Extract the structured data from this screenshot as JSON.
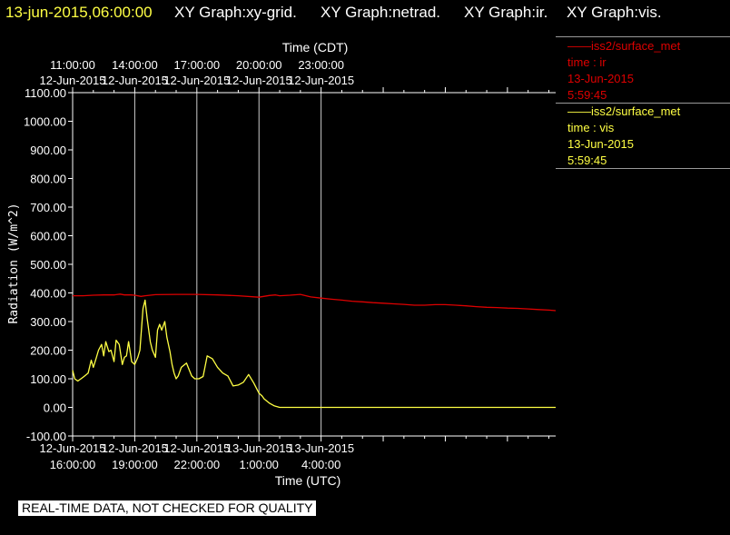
{
  "header": {
    "timestamp": "13-jun-2015,06:00:00",
    "graphs": [
      "XY Graph:xy-grid.",
      "XY Graph:netrad.",
      "XY Graph:ir.",
      "XY Graph:vis."
    ]
  },
  "legend": [
    {
      "title": "iss2/surface_met",
      "var": "time : ir",
      "date": "13-Jun-2015",
      "time": "5:59:45",
      "color": "#dd0000"
    },
    {
      "title": "iss2/surface_met",
      "var": "time : vis",
      "date": "13-Jun-2015",
      "time": "5:59:45",
      "color": "#ffff44"
    }
  ],
  "notice": "REAL-TIME DATA, NOT CHECKED FOR QUALITY",
  "chart_data": {
    "type": "line",
    "ylabel": "Radiation (W/m^2)",
    "xlabel_top": "Time (CDT)",
    "xlabel_bottom": "Time (UTC)",
    "ylim": [
      -100,
      1100
    ],
    "xlim_hours_utc": [
      16.0,
      39.33
    ],
    "grid": true,
    "yticks": [
      "1100.00",
      "1000.00",
      "900.00",
      "800.00",
      "700.00",
      "600.00",
      "500.00",
      "400.00",
      "300.00",
      "200.00",
      "100.00",
      "0.00",
      "-100.00"
    ],
    "top_ticks": [
      {
        "h": 16,
        "time": "11:00:00",
        "date": "12-Jun-2015"
      },
      {
        "h": 19,
        "time": "14:00:00",
        "date": "12-Jun-2015"
      },
      {
        "h": 22,
        "time": "17:00:00",
        "date": "12-Jun-2015"
      },
      {
        "h": 25,
        "time": "20:00:00",
        "date": "12-Jun-2015"
      },
      {
        "h": 28,
        "time": "23:00:00",
        "date": "12-Jun-2015"
      }
    ],
    "bottom_ticks": [
      {
        "h": 16,
        "date": "12-Jun-2015",
        "time": "16:00:00"
      },
      {
        "h": 19,
        "date": "12-Jun-2015",
        "time": "19:00:00"
      },
      {
        "h": 22,
        "date": "12-Jun-2015",
        "time": "22:00:00"
      },
      {
        "h": 25,
        "date": "13-Jun-2015",
        "time": "1:00:00"
      },
      {
        "h": 28,
        "date": "13-Jun-2015",
        "time": "4:00:00"
      }
    ],
    "series": [
      {
        "name": "iss2/surface_met time : ir",
        "color": "#dd0000",
        "x": [
          16.0,
          16.5,
          17.0,
          17.5,
          18.0,
          18.3,
          18.5,
          18.8,
          19.0,
          19.3,
          19.5,
          20.0,
          21.0,
          22.0,
          23.0,
          24.0,
          25.0,
          25.5,
          25.8,
          26.0,
          26.5,
          27.0,
          27.5,
          28.0,
          28.5,
          29.0,
          29.5,
          30.0,
          30.5,
          31.0,
          31.5,
          32.0,
          32.5,
          33.0,
          33.5,
          34.0,
          34.5,
          35.0,
          35.5,
          36.0,
          36.5,
          37.0,
          37.5,
          38.0,
          38.5,
          39.0,
          39.33
        ],
        "y": [
          390,
          390,
          392,
          393,
          393,
          396,
          393,
          393,
          392,
          388,
          390,
          394,
          395,
          395,
          393,
          390,
          385,
          391,
          393,
          390,
          392,
          395,
          386,
          382,
          378,
          375,
          371,
          369,
          366,
          364,
          362,
          360,
          357,
          357,
          359,
          359,
          357,
          355,
          352,
          350,
          349,
          347,
          346,
          344,
          342,
          340,
          338
        ]
      },
      {
        "name": "iss2/surface_met time : vis",
        "color": "#ffff44",
        "x": [
          16.0,
          16.1,
          16.25,
          16.5,
          16.75,
          16.9,
          17.0,
          17.15,
          17.25,
          17.4,
          17.5,
          17.6,
          17.75,
          17.85,
          18.0,
          18.1,
          18.25,
          18.4,
          18.5,
          18.6,
          18.7,
          18.85,
          19.0,
          19.15,
          19.25,
          19.4,
          19.5,
          19.6,
          19.75,
          19.85,
          20.0,
          20.1,
          20.2,
          20.3,
          20.45,
          20.55,
          20.7,
          20.8,
          20.9,
          21.0,
          21.1,
          21.25,
          21.5,
          21.75,
          21.9,
          22.1,
          22.3,
          22.5,
          22.75,
          23.0,
          23.25,
          23.5,
          23.75,
          24.0,
          24.25,
          24.5,
          24.75,
          25.0,
          25.15,
          25.25,
          25.5,
          25.75,
          26.0,
          26.25,
          26.5,
          26.75,
          27.0,
          27.25,
          27.5,
          27.75,
          28.0,
          30.0,
          32.0,
          34.0,
          36.0,
          38.0,
          39.33
        ],
        "y": [
          130,
          100,
          92,
          105,
          120,
          165,
          140,
          175,
          200,
          220,
          180,
          230,
          195,
          200,
          160,
          235,
          220,
          150,
          175,
          180,
          230,
          160,
          150,
          175,
          200,
          345,
          375,
          310,
          230,
          200,
          175,
          270,
          290,
          270,
          300,
          245,
          195,
          150,
          120,
          100,
          110,
          140,
          155,
          110,
          100,
          100,
          108,
          180,
          170,
          140,
          120,
          110,
          75,
          78,
          88,
          115,
          85,
          50,
          40,
          30,
          15,
          5,
          0,
          0,
          0,
          0,
          0,
          0,
          0,
          0,
          0,
          0,
          0,
          0,
          0,
          0,
          0
        ]
      }
    ]
  }
}
